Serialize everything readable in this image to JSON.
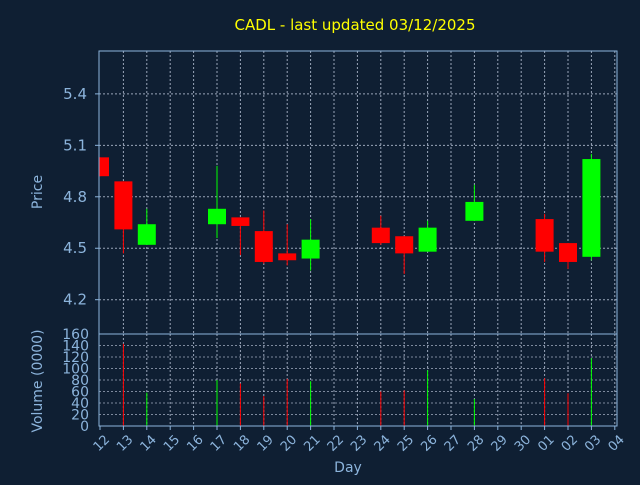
{
  "chart_data": {
    "type": "candlestick",
    "title": "CADL - last updated 03/12/2025",
    "price_ylabel": "Price",
    "volume_ylabel": "Volume (0000)",
    "xlabel": "Day",
    "price_ylim": [
      4.0,
      5.65
    ],
    "price_ticks": [
      "4.2",
      "4.5",
      "4.8",
      "5.1",
      "5.4"
    ],
    "volume_ylim": [
      0,
      160
    ],
    "volume_ticks": [
      "0",
      "20",
      "40",
      "60",
      "80",
      "100",
      "120",
      "140",
      "160"
    ],
    "grid": true,
    "x_tick_labels": [
      "12",
      "13",
      "14",
      "15",
      "16",
      "17",
      "18",
      "19",
      "20",
      "21",
      "22",
      "23",
      "24",
      "25",
      "26",
      "27",
      "28",
      "29",
      "30",
      "01",
      "02",
      "03",
      "04"
    ],
    "candles": [
      {
        "day": "12",
        "open": 5.03,
        "high": 5.03,
        "low": 4.92,
        "close": 4.92,
        "volume": 0
      },
      {
        "day": "13",
        "open": 4.89,
        "high": 4.89,
        "low": 4.47,
        "close": 4.61,
        "volume": 143
      },
      {
        "day": "14",
        "open": 4.52,
        "high": 4.73,
        "low": 4.52,
        "close": 4.64,
        "volume": 58
      },
      {
        "day": "17",
        "open": 4.64,
        "high": 4.98,
        "low": 4.56,
        "close": 4.73,
        "volume": 80
      },
      {
        "day": "18",
        "open": 4.68,
        "high": 4.68,
        "low": 4.46,
        "close": 4.63,
        "volume": 74
      },
      {
        "day": "19",
        "open": 4.6,
        "high": 4.72,
        "low": 4.41,
        "close": 4.42,
        "volume": 52
      },
      {
        "day": "20",
        "open": 4.47,
        "high": 4.64,
        "low": 4.4,
        "close": 4.43,
        "volume": 82
      },
      {
        "day": "21",
        "open": 4.44,
        "high": 4.67,
        "low": 4.37,
        "close": 4.55,
        "volume": 78
      },
      {
        "day": "24",
        "open": 4.62,
        "high": 4.69,
        "low": 4.52,
        "close": 4.53,
        "volume": 60
      },
      {
        "day": "25",
        "open": 4.57,
        "high": 4.57,
        "low": 4.35,
        "close": 4.47,
        "volume": 62
      },
      {
        "day": "26",
        "open": 4.48,
        "high": 4.66,
        "low": 4.48,
        "close": 4.62,
        "volume": 97
      },
      {
        "day": "28",
        "open": 4.66,
        "high": 4.87,
        "low": 4.66,
        "close": 4.77,
        "volume": 47
      },
      {
        "day": "01",
        "open": 4.67,
        "high": 4.7,
        "low": 4.42,
        "close": 4.48,
        "volume": 83
      },
      {
        "day": "02",
        "open": 4.53,
        "high": 4.53,
        "low": 4.38,
        "close": 4.42,
        "volume": 57
      },
      {
        "day": "03",
        "open": 4.45,
        "high": 5.05,
        "low": 4.43,
        "close": 5.02,
        "volume": 118
      }
    ],
    "colors": {
      "background": "#0f1f33",
      "plot_border": "#8cb4dc",
      "grid": "#c8d2e6",
      "title": "#ffff00",
      "axis_text": "#8cb4dc",
      "up": "#00ff00",
      "down": "#ff0000"
    }
  }
}
